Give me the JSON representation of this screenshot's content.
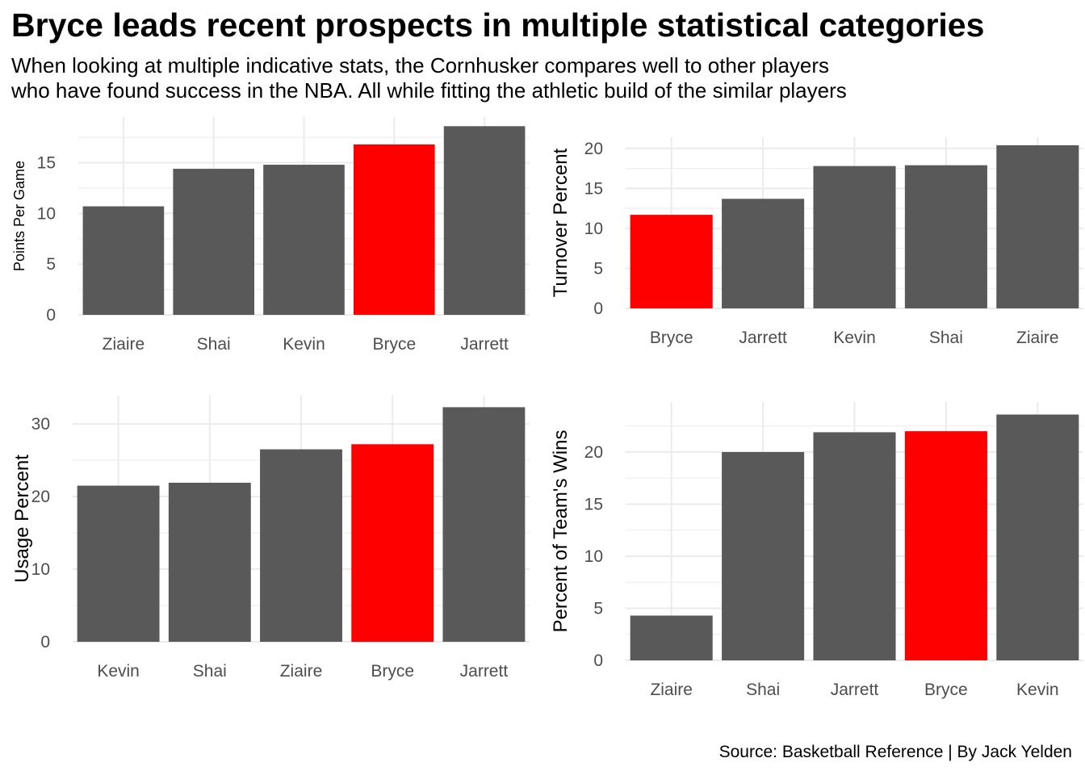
{
  "header": {
    "title": "Bryce leads recent prospects in multiple statistical categories",
    "subtitle_lines": [
      "When looking at multiple indicative stats, the Cornhusker compares well to other players",
      "who have found success in the NBA. All while fitting the athletic build of the similar players"
    ]
  },
  "caption": "Source: Basketball Reference | By Jack Yelden",
  "colors": {
    "bar": "#595959",
    "highlight": "#ff0000",
    "grid": "#ebebeb",
    "tick_text": "#4d4d4d"
  },
  "chart_data": [
    {
      "type": "bar",
      "title": "",
      "xlabel": "",
      "ylabel": "Points Per Game",
      "categories": [
        "Ziaire",
        "Shai",
        "Kevin",
        "Bryce",
        "Jarrett"
      ],
      "values": [
        10.7,
        14.4,
        14.8,
        16.8,
        18.6
      ],
      "highlight": "Bryce",
      "yticks": [
        0,
        5,
        10,
        15
      ],
      "ylim": [
        0,
        19.5
      ],
      "grid": true
    },
    {
      "type": "bar",
      "title": "",
      "xlabel": "",
      "ylabel": "Turnover Percent",
      "categories": [
        "Bryce",
        "Jarrett",
        "Kevin",
        "Shai",
        "Ziaire"
      ],
      "values": [
        11.7,
        13.7,
        17.8,
        17.9,
        20.4
      ],
      "highlight": "Bryce",
      "yticks": [
        0,
        5,
        10,
        15,
        20
      ],
      "ylim": [
        0,
        21.4
      ],
      "grid": true
    },
    {
      "type": "bar",
      "title": "",
      "xlabel": "",
      "ylabel": "Usage Percent",
      "categories": [
        "Kevin",
        "Shai",
        "Ziaire",
        "Bryce",
        "Jarrett"
      ],
      "values": [
        21.5,
        21.9,
        26.5,
        27.2,
        32.3
      ],
      "highlight": "Bryce",
      "yticks": [
        0,
        10,
        20,
        30
      ],
      "ylim": [
        0,
        33.9
      ],
      "grid": true
    },
    {
      "type": "bar",
      "title": "",
      "xlabel": "",
      "ylabel": "Percent of Team's Wins",
      "categories": [
        "Ziaire",
        "Shai",
        "Jarrett",
        "Bryce",
        "Kevin"
      ],
      "values": [
        4.3,
        20.0,
        21.9,
        22.0,
        23.6
      ],
      "highlight": "Bryce",
      "yticks": [
        0,
        5,
        10,
        15,
        20
      ],
      "ylim": [
        0,
        24.8
      ],
      "grid": true
    }
  ]
}
